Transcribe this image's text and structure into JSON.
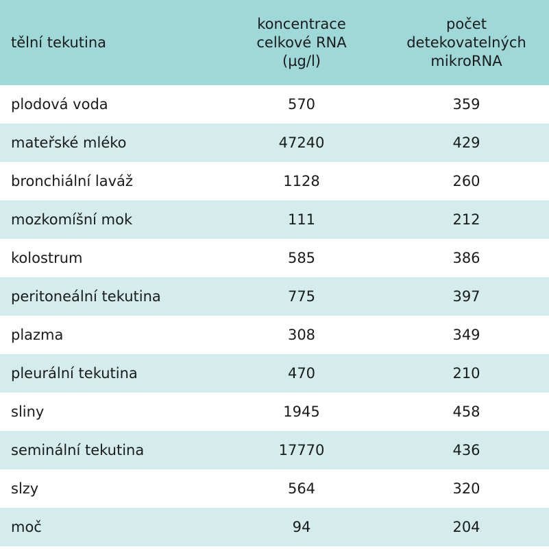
{
  "header": {
    "col1": "tělní tekutina",
    "col2": [
      "koncentrace",
      "celkové RNA",
      "(µg/l)"
    ],
    "col3": [
      "počet",
      "detekovatelných",
      "mikroRNA"
    ]
  },
  "rows": [
    {
      "fluid": "plodová voda",
      "rna": "570",
      "mirna": "359"
    },
    {
      "fluid": "mateřské mléko",
      "rna": "47240",
      "mirna": "429"
    },
    {
      "fluid": "bronchiální laváž",
      "rna": "1128",
      "mirna": "260"
    },
    {
      "fluid": "mozkomíšní mok",
      "rna": "111",
      "mirna": "212"
    },
    {
      "fluid": "kolostrum",
      "rna": "585",
      "mirna": "386"
    },
    {
      "fluid": "peritoneální tekutina",
      "rna": "775",
      "mirna": "397"
    },
    {
      "fluid": "plazma",
      "rna": "308",
      "mirna": "349"
    },
    {
      "fluid": "pleurální tekutina",
      "rna": "470",
      "mirna": "210"
    },
    {
      "fluid": "sliny",
      "rna": "1945",
      "mirna": "458"
    },
    {
      "fluid": "seminální tekutina",
      "rna": "17770",
      "mirna": "436"
    },
    {
      "fluid": "slzy",
      "rna": "564",
      "mirna": "320"
    },
    {
      "fluid": "moč",
      "rna": "94",
      "mirna": "204"
    }
  ],
  "colors": {
    "header_bg": "#9fd8d8",
    "stripe_bg": "#d4ecec",
    "row_bg": "#ffffff"
  }
}
